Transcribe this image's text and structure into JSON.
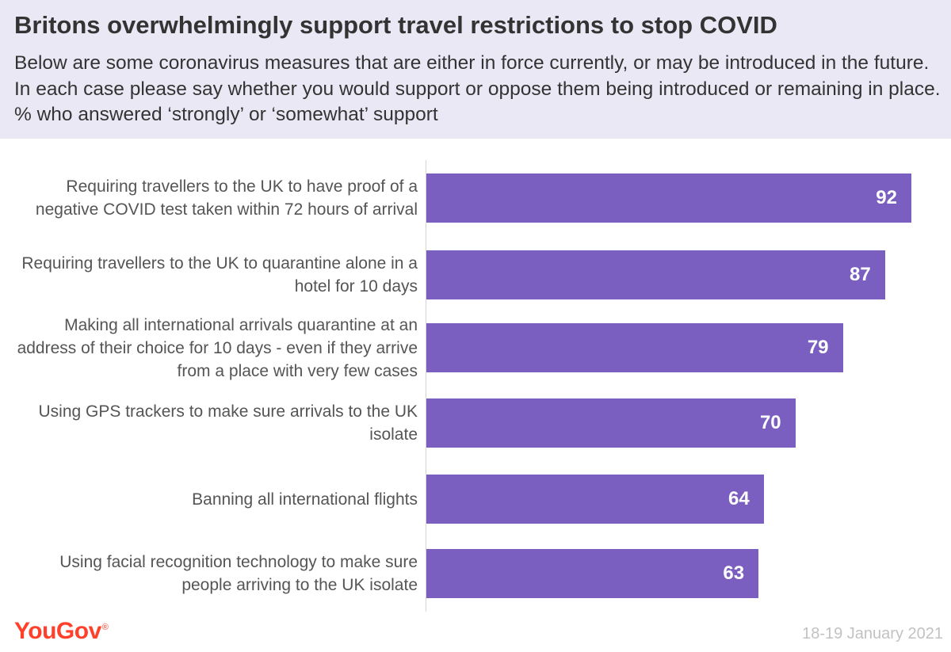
{
  "header": {
    "title": "Britons overwhelmingly support travel restrictions to stop COVID",
    "subtitle": "Below are some coronavirus measures that are either in force currently, or may be introduced in the future. In each case please say whether you would support or oppose them being introduced or remaining in place. % who answered ‘strongly’ or ‘somewhat’ support"
  },
  "chart_data": {
    "type": "bar",
    "orientation": "horizontal",
    "categories": [
      "Requiring travellers to the UK to have proof of a negative COVID test taken within 72 hours of arrival",
      "Requiring travellers to the UK to quarantine alone in a hotel for 10 days",
      "Making all international arrivals quarantine at an address of their choice for 10 days - even if they arrive from a place with very few cases",
      "Using GPS trackers to make sure arrivals to the UK isolate",
      "Banning all international flights",
      "Using facial recognition technology to make sure people arriving to the UK isolate"
    ],
    "values": [
      92,
      87,
      79,
      70,
      64,
      63
    ],
    "xlim": [
      0,
      100
    ],
    "grid": false,
    "bar_color": "#7a5fc1",
    "value_label_color": "#ffffff"
  },
  "footer": {
    "logo_text": "YouGov",
    "logo_mark": "®",
    "logo_color": "#ff412c",
    "date": "18-19 January 2021"
  }
}
